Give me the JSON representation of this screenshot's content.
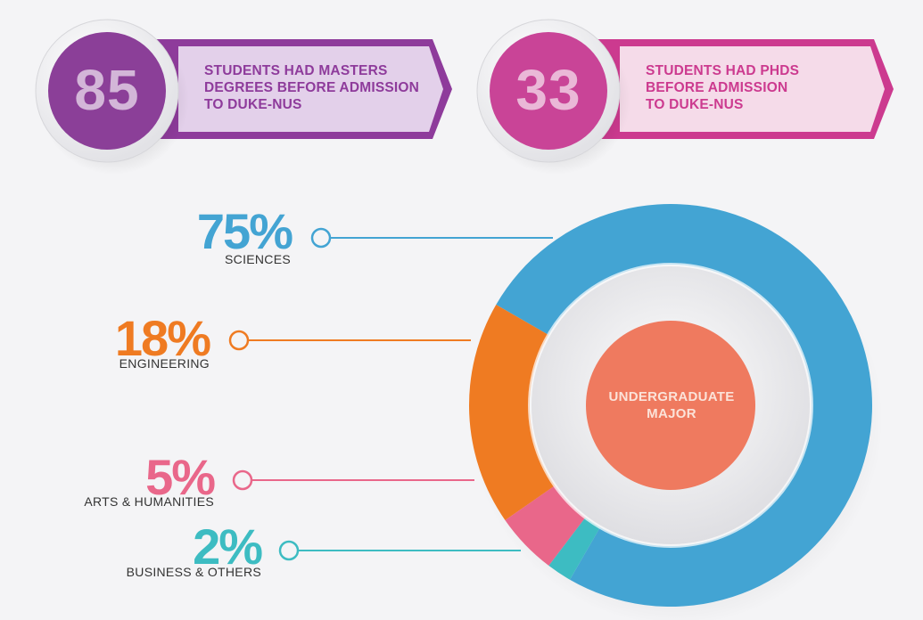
{
  "stats": [
    {
      "number": "85",
      "text": "STUDENTS HAD MASTERS\nDEGREES BEFORE ADMISSION\nTO DUKE-NUS",
      "color": "#8e3b9b",
      "banner_color": "#e3d0ea",
      "circle_color": "#8b3f98"
    },
    {
      "number": "33",
      "text": "STUDENTS HAD PHDS\nBEFORE ADMISSION\nTO DUKE-NUS",
      "color": "#cc3a8f",
      "banner_color": "#f5dbe9",
      "circle_color": "#c94497"
    }
  ],
  "chart_data": {
    "type": "pie",
    "title": "UNDERGRADUATE\nMAJOR",
    "slices": [
      {
        "label": "SCIENCES",
        "percent_label": "75%",
        "value": 75,
        "color": "#43a4d3"
      },
      {
        "label": "ENGINEERING",
        "percent_label": "18%",
        "value": 18,
        "color": "#ef7b22"
      },
      {
        "label": "ARTS & HUMANITIES",
        "percent_label": "5%",
        "value": 5,
        "color": "#e9678a"
      },
      {
        "label": "BUSINESS & OTHERS",
        "percent_label": "2%",
        "value": 2,
        "color": "#3dbcc2"
      }
    ],
    "center_color": "#ef7a5f"
  }
}
